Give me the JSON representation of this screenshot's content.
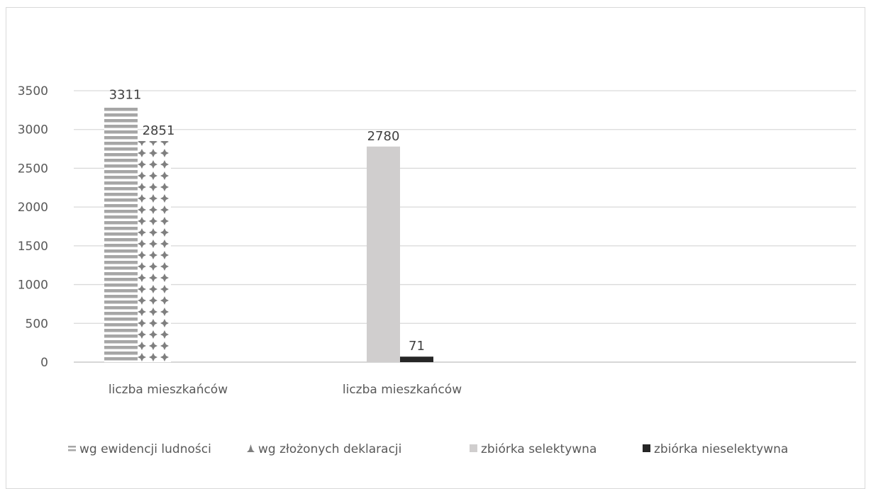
{
  "chart_data": {
    "type": "bar",
    "title": "",
    "xlabel": "",
    "ylabel": "",
    "ylim": [
      0,
      3500
    ],
    "yticks": [
      0,
      500,
      1000,
      1500,
      2000,
      2500,
      3000,
      3500
    ],
    "grid": true,
    "legend_position": "bottom",
    "groups": [
      {
        "label": "liczba mieszkańców",
        "bars": [
          {
            "series": "wg ewidencji ludności",
            "value": 3311,
            "label": "3311"
          },
          {
            "series": "wg złożonych deklaracji",
            "value": 2851,
            "label": "2851"
          }
        ]
      },
      {
        "label": "liczba mieszkańców",
        "bars": [
          {
            "series": "zbiórka selektywna",
            "value": 2780,
            "label": "2780"
          },
          {
            "series": "zbiórka nieselektywna",
            "value": 71,
            "label": "71"
          }
        ]
      }
    ],
    "series": [
      {
        "name": "wg ewidencji ludności",
        "color": "#a6a6a6",
        "pattern": "horizontal-stripes"
      },
      {
        "name": "wg złożonych deklaracji",
        "color": "#7f7f7f",
        "pattern": "dotted-cross"
      },
      {
        "name": "zbiórka selektywna",
        "color": "#d0cece",
        "pattern": "solid"
      },
      {
        "name": "zbiórka nieselektywna",
        "color": "#262626",
        "pattern": "solid"
      }
    ]
  }
}
